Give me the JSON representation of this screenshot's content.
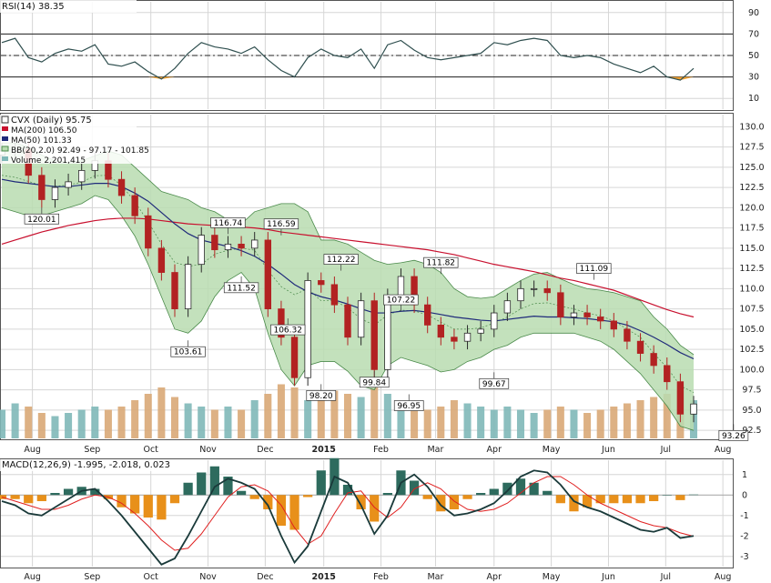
{
  "colors": {
    "rsi_line": "#2f4f4f",
    "rsi_oversold_fill": "#f0a030",
    "ma200": "#c8102e",
    "ma50": "#1f2a7a",
    "bb_fill": "#b8dcb0",
    "bb_line": "#4a8a4a",
    "candle_up": "#2b2b2b",
    "candle_down": "#b22222",
    "volume_up": "#7fb8b8",
    "volume_down": "#d9a877",
    "macd_line": "#1a3a3a",
    "signal_line": "#e02020",
    "hist_pos": "#2e6b5e",
    "hist_neg": "#e8901a",
    "grid": "#d6d6d6"
  },
  "chart_data": [
    {
      "type": "line",
      "panel": "rsi",
      "legend": "RSI(14) 38.35",
      "ylim": [
        0,
        100
      ],
      "yticks": [
        10,
        30,
        50,
        70,
        90
      ],
      "reference_lines": [
        30,
        50,
        70
      ],
      "x": [
        "Jul-18",
        "Jul-25",
        "Aug-01",
        "Aug-08",
        "Aug-15",
        "Aug-22",
        "Aug-29",
        "Sep-05",
        "Sep-12",
        "Sep-19",
        "Sep-26",
        "Oct-03",
        "Oct-10",
        "Oct-17",
        "Oct-24",
        "Oct-31",
        "Nov-07",
        "Nov-14",
        "Nov-21",
        "Nov-28",
        "Dec-05",
        "Dec-12",
        "Dec-19",
        "Dec-26",
        "Jan-02",
        "Jan-09",
        "Jan-16",
        "Jan-23",
        "Jan-30",
        "Feb-06",
        "Feb-13",
        "Feb-20",
        "Feb-27",
        "Mar-06",
        "Mar-13",
        "Mar-20",
        "Mar-27",
        "Apr-03",
        "Apr-10",
        "Apr-17",
        "Apr-24",
        "May-01",
        "May-08",
        "May-15",
        "May-22",
        "May-29",
        "Jun-05",
        "Jun-12",
        "Jun-19",
        "Jun-26",
        "Jul-03",
        "Jul-10",
        "Jul-14"
      ],
      "series": [
        {
          "values": [
            62,
            66,
            48,
            44,
            52,
            56,
            54,
            60,
            42,
            40,
            44,
            35,
            28,
            38,
            52,
            62,
            58,
            56,
            52,
            58,
            46,
            36,
            30,
            48,
            56,
            50,
            48,
            56,
            38,
            60,
            64,
            55,
            48,
            46,
            48,
            50,
            52,
            62,
            60,
            64,
            66,
            64,
            50,
            48,
            50,
            48,
            42,
            38,
            34,
            40,
            30,
            27,
            38
          ]
        }
      ]
    },
    {
      "type": "line",
      "panel": "price",
      "legend": [
        "CVX (Daily) 95.75",
        "MA(200) 106.50",
        "MA(50) 101.33",
        "BB(20,2.0) 92.49 - 97.17 - 101.85",
        "Volume 2,201,415"
      ],
      "ylim": [
        91.5,
        131.5
      ],
      "yticks": [
        92.5,
        95.0,
        97.5,
        100.0,
        102.5,
        105.0,
        107.5,
        110.0,
        112.5,
        115.0,
        117.5,
        120.0,
        122.5,
        125.0,
        127.5,
        130.0
      ],
      "x": [
        "Jul-18",
        "Jul-25",
        "Aug-01",
        "Aug-08",
        "Aug-15",
        "Aug-22",
        "Aug-29",
        "Sep-05",
        "Sep-12",
        "Sep-19",
        "Sep-26",
        "Oct-03",
        "Oct-10",
        "Oct-17",
        "Oct-24",
        "Oct-31",
        "Nov-07",
        "Nov-14",
        "Nov-21",
        "Nov-28",
        "Dec-05",
        "Dec-12",
        "Dec-19",
        "Dec-26",
        "Jan-02",
        "Jan-09",
        "Jan-16",
        "Jan-23",
        "Jan-30",
        "Feb-06",
        "Feb-13",
        "Feb-20",
        "Feb-27",
        "Mar-06",
        "Mar-13",
        "Mar-20",
        "Mar-27",
        "Apr-03",
        "Apr-10",
        "Apr-17",
        "Apr-24",
        "May-01",
        "May-08",
        "May-15",
        "May-22",
        "May-29",
        "Jun-05",
        "Jun-12",
        "Jun-19",
        "Jun-26",
        "Jul-03",
        "Jul-10",
        "Jul-14"
      ],
      "series": [
        {
          "name": "CVX (Daily)",
          "values": [
            127.0,
            127.2,
            124.0,
            121.0,
            122.5,
            123.2,
            124.6,
            125.8,
            123.5,
            121.5,
            119.0,
            115.0,
            112.0,
            107.5,
            113.0,
            116.6,
            114.8,
            115.5,
            115.0,
            116.0,
            107.5,
            104.0,
            99.0,
            111.0,
            110.5,
            108.0,
            104.0,
            108.5,
            100.0,
            109.0,
            111.5,
            108.0,
            105.5,
            104.0,
            103.5,
            104.5,
            105.0,
            107.0,
            108.5,
            110.0,
            110.0,
            109.5,
            106.5,
            107.0,
            106.5,
            106.0,
            105.0,
            103.5,
            102.0,
            100.5,
            98.5,
            94.5,
            95.75
          ]
        },
        {
          "name": "MA(200)",
          "values": [
            115.5,
            116.0,
            116.5,
            117.0,
            117.4,
            117.8,
            118.1,
            118.4,
            118.6,
            118.7,
            118.7,
            118.6,
            118.4,
            118.2,
            118.0,
            117.9,
            117.8,
            117.7,
            117.6,
            117.5,
            117.3,
            117.0,
            116.8,
            116.6,
            116.4,
            116.2,
            116.0,
            115.8,
            115.6,
            115.4,
            115.2,
            115.0,
            114.8,
            114.5,
            114.2,
            113.8,
            113.4,
            113.0,
            112.7,
            112.4,
            112.1,
            111.7,
            111.3,
            111.0,
            110.6,
            110.2,
            109.8,
            109.2,
            108.6,
            108.0,
            107.4,
            106.9,
            106.5
          ]
        },
        {
          "name": "MA(50)",
          "values": [
            123.5,
            123.2,
            123.0,
            122.8,
            122.6,
            122.6,
            122.8,
            123.0,
            123.0,
            122.6,
            121.8,
            120.8,
            119.4,
            118.0,
            116.8,
            116.0,
            115.6,
            115.2,
            114.7,
            114.0,
            113.0,
            111.8,
            110.5,
            109.6,
            109.0,
            108.6,
            108.1,
            107.5,
            107.0,
            107.0,
            107.2,
            107.3,
            107.1,
            106.8,
            106.5,
            106.3,
            106.1,
            106.0,
            106.2,
            106.4,
            106.6,
            106.5,
            106.5,
            106.4,
            106.3,
            106.1,
            105.9,
            105.5,
            104.8,
            104.0,
            103.1,
            102.1,
            101.33
          ]
        },
        {
          "name": "BB upper",
          "values": [
            128.0,
            128.0,
            127.5,
            126.5,
            125.8,
            125.6,
            125.8,
            126.4,
            127.0,
            126.5,
            125.0,
            123.5,
            122.0,
            121.5,
            121.0,
            120.0,
            119.5,
            118.5,
            118.0,
            119.5,
            120.0,
            120.5,
            120.5,
            119.5,
            116.0,
            116.0,
            115.5,
            114.5,
            113.5,
            113.0,
            113.2,
            113.5,
            113.0,
            112.0,
            110.0,
            109.0,
            108.8,
            109.0,
            110.0,
            111.0,
            111.8,
            112.0,
            111.2,
            110.5,
            110.0,
            109.8,
            109.5,
            109.0,
            108.5,
            106.5,
            105.0,
            103.0,
            101.85
          ]
        },
        {
          "name": "BB lower",
          "values": [
            120.0,
            119.5,
            119.0,
            119.0,
            119.5,
            120.0,
            120.5,
            121.5,
            121.0,
            119.0,
            116.5,
            113.0,
            109.0,
            105.0,
            104.5,
            106.0,
            109.0,
            111.0,
            112.0,
            110.0,
            104.5,
            100.0,
            98.0,
            100.5,
            101.0,
            101.0,
            99.8,
            98.0,
            97.5,
            100.5,
            101.5,
            101.0,
            100.5,
            99.7,
            100.0,
            101.0,
            101.5,
            102.5,
            103.0,
            104.0,
            104.5,
            104.5,
            104.5,
            104.5,
            104.0,
            103.5,
            102.5,
            101.0,
            99.5,
            97.5,
            95.5,
            93.0,
            92.49
          ]
        }
      ],
      "volume_relative": [
        0.45,
        0.55,
        0.5,
        0.4,
        0.35,
        0.4,
        0.45,
        0.5,
        0.45,
        0.5,
        0.6,
        0.7,
        0.8,
        0.65,
        0.55,
        0.5,
        0.45,
        0.5,
        0.45,
        0.6,
        0.7,
        0.85,
        0.8,
        0.6,
        0.65,
        0.75,
        0.7,
        0.65,
        0.85,
        0.7,
        0.55,
        0.5,
        0.45,
        0.5,
        0.6,
        0.55,
        0.5,
        0.45,
        0.5,
        0.45,
        0.4,
        0.45,
        0.5,
        0.45,
        0.4,
        0.45,
        0.5,
        0.55,
        0.6,
        0.65,
        0.7,
        0.75,
        0.6
      ],
      "callouts": [
        {
          "text": "120.01",
          "x_index": 3,
          "value": 120.01,
          "position": "below"
        },
        {
          "text": "116.74",
          "x_index": 17,
          "value": 116.74,
          "position": "above"
        },
        {
          "text": "116.59",
          "x_index": 21,
          "value": 116.59,
          "position": "above"
        },
        {
          "text": "103.61",
          "x_index": 14,
          "value": 103.61,
          "position": "below"
        },
        {
          "text": "111.52",
          "x_index": 18,
          "value": 111.52,
          "position": "below"
        },
        {
          "text": "106.32",
          "x_index": 21.5,
          "value": 106.32,
          "position": "below"
        },
        {
          "text": "112.22",
          "x_index": 25.5,
          "value": 112.22,
          "position": "above"
        },
        {
          "text": "98.20",
          "x_index": 24,
          "value": 98.2,
          "position": "below"
        },
        {
          "text": "99.84",
          "x_index": 28,
          "value": 99.84,
          "position": "below"
        },
        {
          "text": "107.22",
          "x_index": 30,
          "value": 107.22,
          "position": "above"
        },
        {
          "text": "96.95",
          "x_index": 30.6,
          "value": 96.95,
          "position": "below"
        },
        {
          "text": "111.82",
          "x_index": 33,
          "value": 111.82,
          "position": "above"
        },
        {
          "text": "99.67",
          "x_index": 37,
          "value": 99.67,
          "position": "below"
        },
        {
          "text": "111.09",
          "x_index": 44.5,
          "value": 111.09,
          "position": "above"
        },
        {
          "text": "93.26",
          "x_index": 55,
          "value": 93.26,
          "position": "below"
        }
      ]
    },
    {
      "type": "line",
      "panel": "macd",
      "legend": "MACD(12,26,9) -1.995, -2.018, 0.023",
      "ylim": [
        -3.5,
        1.7
      ],
      "yticks": [
        -3,
        -2,
        -1,
        0,
        1
      ],
      "x": [
        "Jul-18",
        "Jul-25",
        "Aug-01",
        "Aug-08",
        "Aug-15",
        "Aug-22",
        "Aug-29",
        "Sep-05",
        "Sep-12",
        "Sep-19",
        "Sep-26",
        "Oct-03",
        "Oct-10",
        "Oct-17",
        "Oct-24",
        "Oct-31",
        "Nov-07",
        "Nov-14",
        "Nov-21",
        "Nov-28",
        "Dec-05",
        "Dec-12",
        "Dec-19",
        "Dec-26",
        "Jan-02",
        "Jan-09",
        "Jan-16",
        "Jan-23",
        "Jan-30",
        "Feb-06",
        "Feb-13",
        "Feb-20",
        "Feb-27",
        "Mar-06",
        "Mar-13",
        "Mar-20",
        "Mar-27",
        "Apr-03",
        "Apr-10",
        "Apr-17",
        "Apr-24",
        "May-01",
        "May-08",
        "May-15",
        "May-22",
        "May-29",
        "Jun-05",
        "Jun-12",
        "Jun-19",
        "Jun-26",
        "Jul-03",
        "Jul-10",
        "Jul-14"
      ],
      "series": [
        {
          "name": "MACD",
          "values": [
            -0.3,
            -0.5,
            -0.9,
            -1.0,
            -0.6,
            -0.2,
            0.2,
            0.3,
            -0.3,
            -1.0,
            -1.8,
            -2.6,
            -3.4,
            -3.1,
            -2.0,
            -0.8,
            0.4,
            0.8,
            0.6,
            0.3,
            -0.5,
            -2.0,
            -3.3,
            -2.5,
            -0.8,
            0.9,
            0.6,
            -0.5,
            -1.9,
            -1.0,
            0.6,
            1.0,
            0.4,
            -0.5,
            -1.0,
            -0.9,
            -0.7,
            -0.4,
            0.2,
            0.9,
            1.2,
            1.1,
            0.5,
            -0.3,
            -0.6,
            -0.8,
            -1.1,
            -1.4,
            -1.7,
            -1.8,
            -1.6,
            -2.1,
            -2.0
          ]
        },
        {
          "name": "Signal",
          "values": [
            -0.1,
            -0.3,
            -0.5,
            -0.7,
            -0.7,
            -0.5,
            -0.2,
            0.0,
            -0.1,
            -0.4,
            -0.9,
            -1.5,
            -2.2,
            -2.7,
            -2.6,
            -1.9,
            -1.0,
            -0.1,
            0.4,
            0.5,
            0.2,
            -0.5,
            -1.6,
            -2.4,
            -2.0,
            -0.9,
            0.1,
            0.2,
            -0.6,
            -1.1,
            -0.6,
            0.3,
            0.6,
            0.3,
            -0.3,
            -0.7,
            -0.8,
            -0.7,
            -0.4,
            0.1,
            0.6,
            0.9,
            0.9,
            0.5,
            0.0,
            -0.4,
            -0.7,
            -1.0,
            -1.3,
            -1.5,
            -1.6,
            -1.85,
            -2.018
          ]
        }
      ],
      "histogram": [
        -0.2,
        -0.2,
        -0.4,
        -0.3,
        0.1,
        0.3,
        0.4,
        0.3,
        -0.2,
        -0.6,
        -0.9,
        -1.1,
        -1.2,
        -0.4,
        0.6,
        1.1,
        1.4,
        0.9,
        0.2,
        -0.2,
        -0.7,
        -1.5,
        -1.7,
        -0.1,
        1.2,
        1.8,
        0.5,
        -0.7,
        -1.3,
        0.1,
        1.2,
        0.7,
        -0.2,
        -0.8,
        -0.7,
        -0.2,
        0.1,
        0.3,
        0.6,
        0.8,
        0.6,
        0.2,
        -0.4,
        -0.8,
        -0.6,
        -0.4,
        -0.4,
        -0.4,
        -0.4,
        -0.3,
        0.0,
        -0.25,
        0.023
      ]
    }
  ],
  "x_axis": {
    "months": [
      {
        "label": "Aug",
        "x_index": 2.3
      },
      {
        "label": "Sep",
        "x_index": 6.8
      },
      {
        "label": "Oct",
        "x_index": 11.2
      },
      {
        "label": "Nov",
        "x_index": 15.5
      },
      {
        "label": "Dec",
        "x_index": 19.8
      },
      {
        "label": "2015",
        "x_index": 24.2
      },
      {
        "label": "Feb",
        "x_index": 28.5
      },
      {
        "label": "Mar",
        "x_index": 32.6
      },
      {
        "label": "Apr",
        "x_index": 37.0
      },
      {
        "label": "May",
        "x_index": 41.3
      },
      {
        "label": "Jun",
        "x_index": 45.6
      },
      {
        "label": "Jul",
        "x_index": 49.9
      },
      {
        "label": "Aug",
        "x_index": 54.2
      }
    ]
  }
}
